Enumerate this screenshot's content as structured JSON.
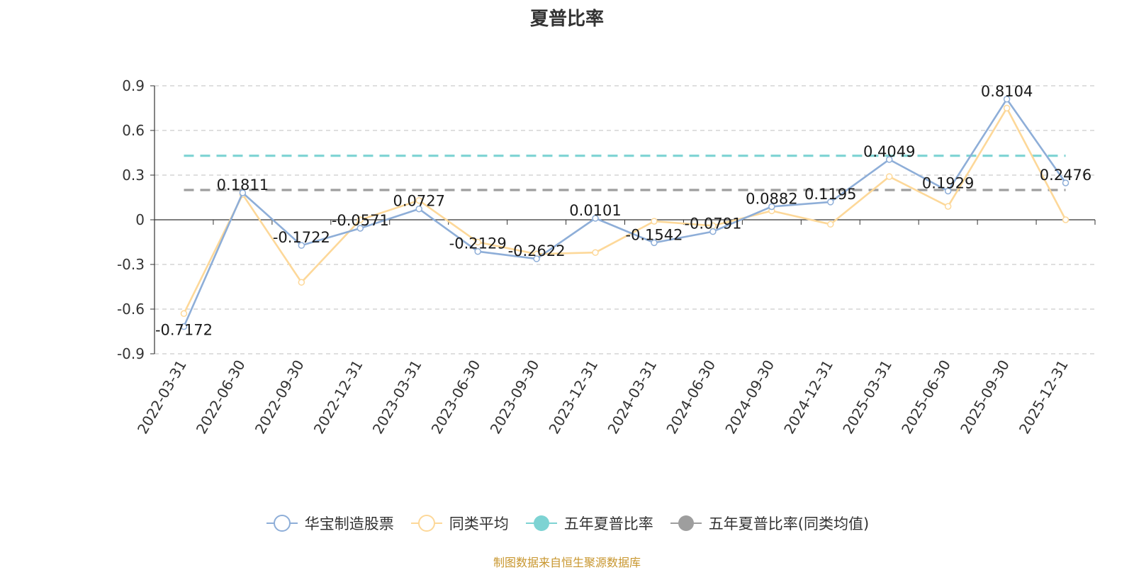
{
  "chart_data": {
    "type": "line",
    "title": "夏普比率",
    "categories": [
      "2022-03-31",
      "2022-06-30",
      "2022-09-30",
      "2022-12-31",
      "2023-03-31",
      "2023-06-30",
      "2023-09-30",
      "2023-12-31",
      "2024-03-31",
      "2024-06-30",
      "2024-09-30",
      "2024-12-31",
      "2025-03-31",
      "2025-06-30",
      "2025-09-30",
      "2025-12-31"
    ],
    "ylim": [
      -0.9,
      0.9
    ],
    "yticks": [
      0.9,
      0.6,
      0.3,
      0,
      -0.3,
      -0.6,
      -0.9
    ],
    "ytick_labels": [
      "0.9",
      "0.6",
      "0.3",
      "0",
      "-0.3",
      "-0.6",
      "-0.9"
    ],
    "grid": true,
    "legend_position": "bottom",
    "series": [
      {
        "name": "华宝制造股票",
        "color": "#8eaed8",
        "values": [
          -0.7172,
          0.1811,
          -0.1722,
          -0.0571,
          0.0727,
          -0.2129,
          -0.2622,
          0.0101,
          -0.1542,
          -0.0791,
          0.0882,
          0.1195,
          0.4049,
          0.1929,
          0.8104,
          0.2476
        ],
        "labels": [
          "-0.7172",
          "0.1811",
          "-0.1722",
          "-0.0571",
          "0.0727",
          "-0.2129",
          "-0.2622",
          "0.0101",
          "-0.1542",
          "-0.0791",
          "0.0882",
          "0.1195",
          "0.4049",
          "0.1929",
          "0.8104",
          "0.2476"
        ]
      },
      {
        "name": "同类平均",
        "color": "#fdd899",
        "values": [
          -0.63,
          0.17,
          -0.42,
          0.0,
          0.13,
          -0.15,
          -0.23,
          -0.22,
          -0.01,
          -0.04,
          0.06,
          -0.03,
          0.29,
          0.09,
          0.75,
          0.0
        ]
      }
    ],
    "reference_lines": [
      {
        "name": "五年夏普比率",
        "color": "#7dd3d3",
        "value": 0.43
      },
      {
        "name": "五年夏普比率(同类均值)",
        "color": "#9e9e9e",
        "value": 0.2
      }
    ]
  },
  "source_note": "制图数据来自恒生聚源数据库"
}
